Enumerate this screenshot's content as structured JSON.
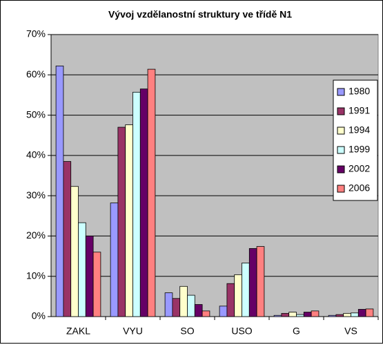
{
  "chart_data": {
    "type": "bar",
    "title": "Vývoj vzdělanostní struktury ve třídě N1",
    "categories": [
      "ZAKL",
      "VYU",
      "SO",
      "USO",
      "G",
      "VS"
    ],
    "series": [
      {
        "name": "1980",
        "color": "#9999ff",
        "values": [
          62.2,
          28.2,
          5.9,
          2.6,
          0.3,
          0.3
        ]
      },
      {
        "name": "1991",
        "color": "#993366",
        "values": [
          38.5,
          47,
          4.5,
          8.2,
          0.8,
          0.5
        ]
      },
      {
        "name": "1994",
        "color": "#ffffcc",
        "values": [
          32.3,
          47.6,
          7.5,
          10.4,
          1.1,
          0.8
        ]
      },
      {
        "name": "1999",
        "color": "#ccffff",
        "values": [
          23.3,
          55.7,
          5.3,
          13.3,
          0.5,
          0.9
        ]
      },
      {
        "name": "2002",
        "color": "#660066",
        "values": [
          20,
          56.5,
          3,
          16.9,
          1.1,
          1.8
        ]
      },
      {
        "name": "2006",
        "color": "#ff8080",
        "values": [
          16,
          61.4,
          1.4,
          17.4,
          1.4,
          1.9
        ]
      }
    ],
    "ylim": [
      0,
      70
    ],
    "yticks": [
      {
        "value": 0,
        "label": "0%"
      },
      {
        "value": 10,
        "label": "10%"
      },
      {
        "value": 20,
        "label": "20%"
      },
      {
        "value": 30,
        "label": "30%"
      },
      {
        "value": 40,
        "label": "40%"
      },
      {
        "value": 50,
        "label": "50%"
      },
      {
        "value": 60,
        "label": "60%"
      },
      {
        "value": 70,
        "label": "70%"
      }
    ],
    "grid": true,
    "legend": "right",
    "plot_background": "#c0c0c0"
  }
}
